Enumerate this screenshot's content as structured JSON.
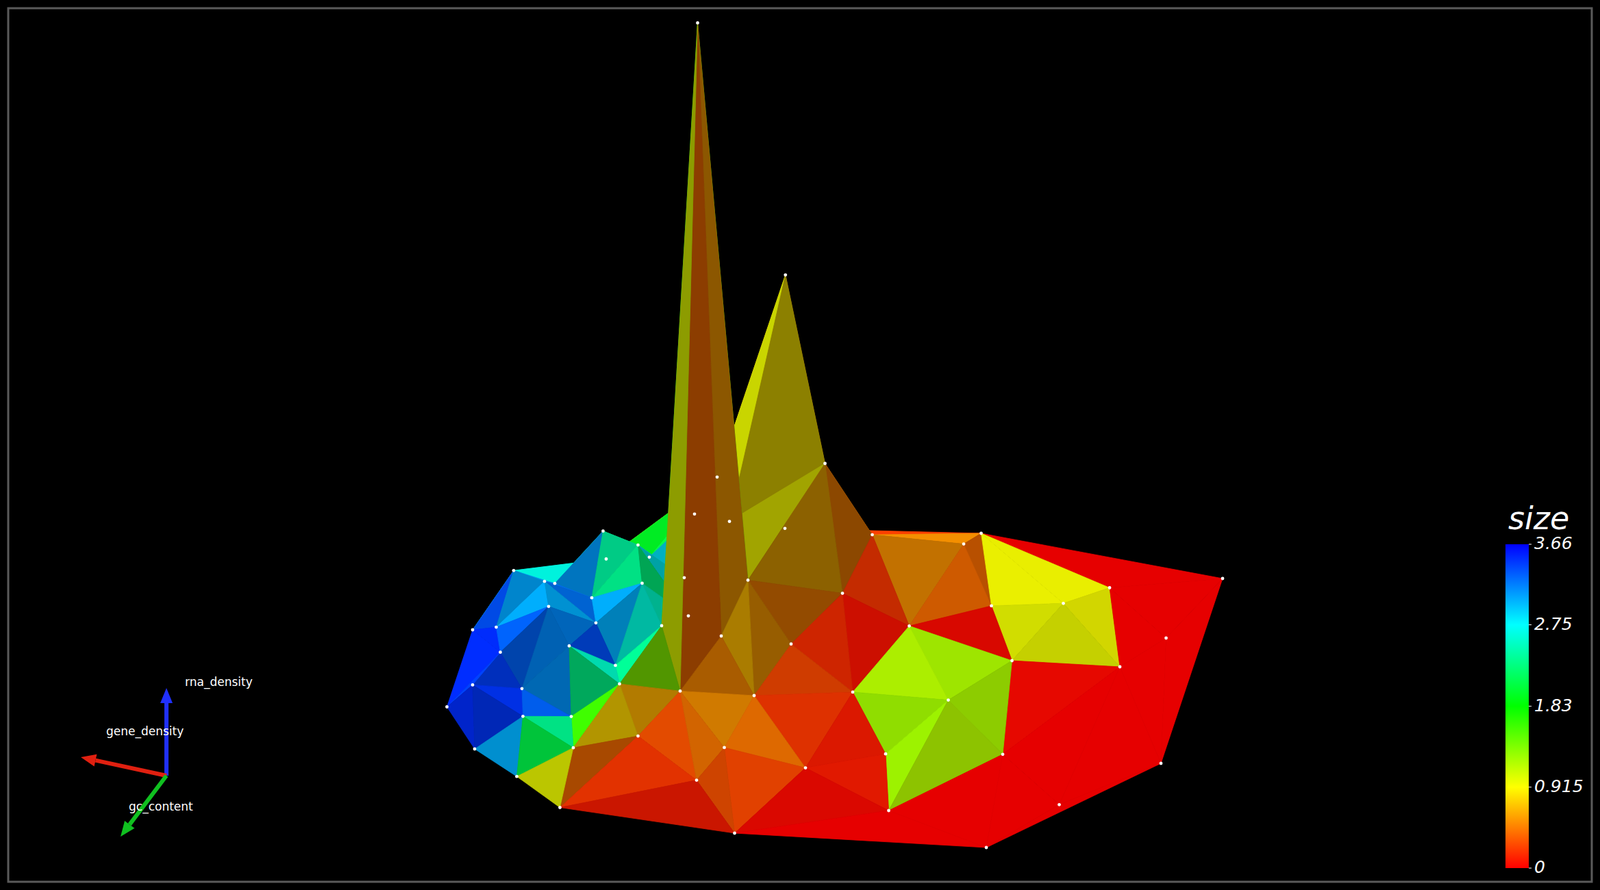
{
  "chart_data": {
    "type": "surface3d",
    "axis_labels": {
      "x": "gene_density",
      "y": "gc_content",
      "z": "rna_density"
    },
    "gene_density": [
      0.0,
      0.35,
      0.62,
      0.85,
      1.0,
      1.0,
      0.8,
      0.55,
      0.2,
      0.0,
      0.615,
      0.68,
      0.55,
      0.7,
      0.72,
      0.78,
      0.84,
      0.9,
      0.95,
      0.66,
      0.72,
      0.78,
      0.84,
      0.9,
      0.96,
      0.62,
      0.7,
      0.76,
      0.82,
      0.88,
      0.94,
      0.64,
      0.72,
      0.78,
      0.84,
      0.9,
      0.96,
      0.68,
      0.76,
      0.82,
      0.88,
      0.94,
      0.72,
      0.8,
      0.87,
      0.58,
      0.6,
      0.62,
      0.55,
      0.5,
      0.48,
      0.45,
      0.48,
      0.4,
      0.36,
      0.3,
      0.2,
      0.15,
      0.25,
      0.1,
      0.31,
      0.22,
      0.38,
      0.12,
      0.35,
      0.05
    ],
    "gc_content": [
      0.1,
      0.0,
      0.02,
      0.15,
      0.4,
      0.65,
      0.95,
      1.0,
      1.0,
      0.7,
      0.05,
      0.45,
      0.12,
      0.12,
      0.2,
      0.22,
      0.25,
      0.3,
      0.35,
      0.28,
      0.3,
      0.33,
      0.36,
      0.4,
      0.45,
      0.38,
      0.4,
      0.43,
      0.46,
      0.5,
      0.55,
      0.5,
      0.52,
      0.55,
      0.58,
      0.62,
      0.68,
      0.62,
      0.65,
      0.7,
      0.75,
      0.8,
      0.75,
      0.82,
      0.88,
      0.6,
      0.75,
      0.88,
      0.45,
      0.3,
      0.15,
      0.55,
      0.8,
      0.35,
      0.1,
      0.25,
      0.25,
      0.15,
      0.4,
      0.4,
      0.6,
      0.7,
      0.72,
      0.85,
      0.9,
      0.3
    ],
    "rna_density": [
      0.0,
      0.0,
      0.0,
      0.0,
      0.0,
      0.0,
      0.0,
      0.0,
      0.0,
      0.0,
      0.4,
      0.967,
      0.15,
      0.12,
      0.1,
      0.04,
      0.09,
      0.03,
      0.07,
      0.13,
      0.05,
      0.11,
      0.04,
      0.08,
      0.03,
      0.09,
      0.04,
      0.1,
      0.05,
      0.09,
      0.04,
      0.06,
      0.08,
      0.03,
      0.07,
      0.02,
      0.05,
      0.03,
      0.05,
      0.02,
      0.04,
      0.01,
      0.02,
      0.03,
      0.01,
      0.02,
      0.01,
      0.02,
      0.03,
      0.04,
      0.06,
      0.01,
      0.01,
      0.02,
      0.03,
      0.01,
      0.02,
      0.0,
      0.0,
      0.0,
      0.03,
      0.0,
      0.0,
      0.0,
      0.0,
      0.0
    ],
    "size": [
      0.0,
      0.0,
      0.3,
      1.5,
      3.5,
      3.6,
      0.1,
      0.0,
      0.0,
      0.0,
      0.6,
      0.2,
      0.8,
      1.2,
      1.9,
      3.2,
      2.2,
      3.6,
      3.0,
      1.1,
      3.4,
      1.6,
      3.5,
      2.6,
      3.6,
      0.9,
      3.3,
      2.0,
      3.6,
      2.9,
      3.4,
      0.6,
      2.4,
      3.5,
      3.0,
      3.6,
      3.3,
      0.4,
      1.2,
      2.8,
      3.5,
      3.6,
      0.3,
      0.8,
      2.0,
      0.5,
      0.7,
      0.2,
      0.3,
      0.2,
      0.4,
      0.0,
      0.1,
      0.0,
      1.2,
      0.0,
      2.8,
      0.0,
      0.1,
      0.0,
      3.5,
      0.0,
      0.2,
      0.0,
      0.0,
      0.0
    ],
    "xlim": [
      0,
      1
    ],
    "ylim": [
      0,
      1
    ],
    "zlim": [
      0,
      1
    ],
    "tick_labels": false,
    "colorbar": {
      "title": "size",
      "range": [
        0,
        3.66
      ],
      "ticks": [
        0,
        0.915,
        1.83,
        2.75,
        3.66
      ]
    }
  }
}
